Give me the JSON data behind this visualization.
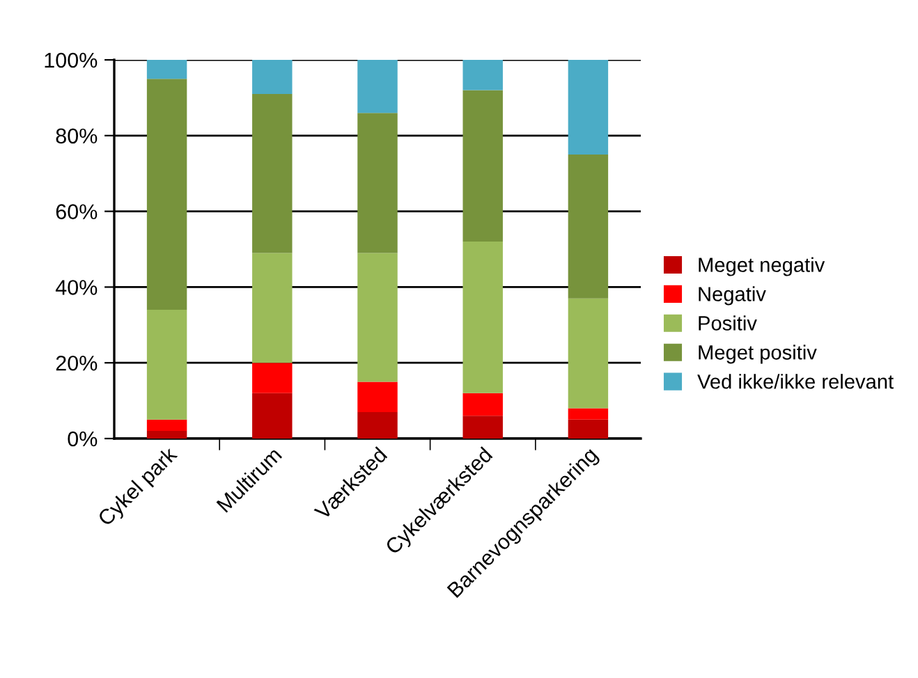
{
  "chart_data": {
    "type": "bar",
    "stacked": true,
    "categories": [
      "Cykel park",
      "Multirum",
      "Værksted",
      "Cykelværksted",
      "Barnevognsparkering"
    ],
    "series": [
      {
        "name": "Meget negativ",
        "color": "#c00000",
        "values": [
          2,
          12,
          7,
          6,
          5
        ]
      },
      {
        "name": "Negativ",
        "color": "#ff0000",
        "values": [
          3,
          8,
          8,
          6,
          3
        ]
      },
      {
        "name": "Positiv",
        "color": "#9bbb59",
        "values": [
          29,
          29,
          34,
          40,
          29
        ]
      },
      {
        "name": "Meget positiv",
        "color": "#77933c",
        "values": [
          61,
          42,
          37,
          40,
          38
        ]
      },
      {
        "name": "Ved ikke/ikke relevant",
        "color": "#4bacc6",
        "values": [
          5,
          9,
          14,
          8,
          25
        ]
      }
    ],
    "ylim": [
      0,
      100
    ],
    "yticks": [
      {
        "value": 0,
        "label": "0%"
      },
      {
        "value": 20,
        "label": "20%"
      },
      {
        "value": 40,
        "label": "40%"
      },
      {
        "value": 60,
        "label": "60%"
      },
      {
        "value": 80,
        "label": "80%"
      },
      {
        "value": 100,
        "label": "100%"
      }
    ],
    "grid": "y",
    "legend": "right"
  }
}
